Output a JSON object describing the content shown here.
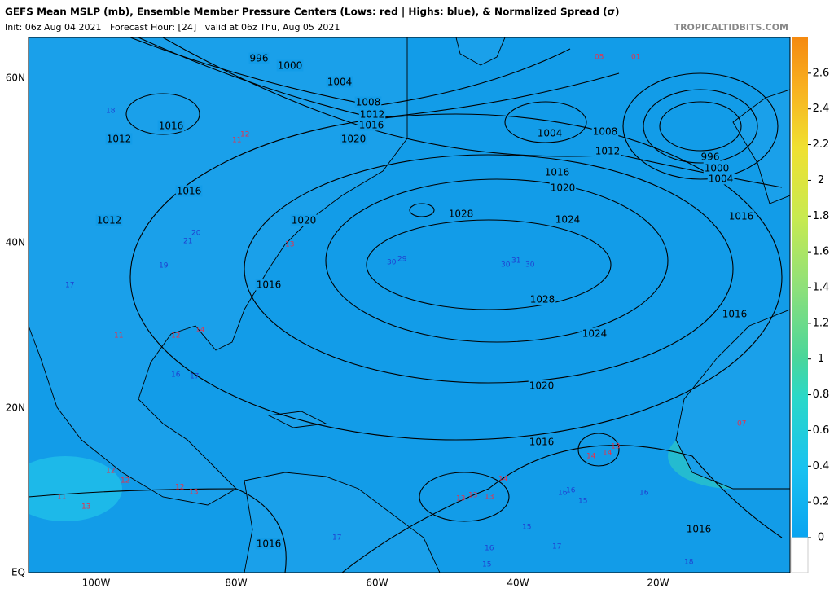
{
  "header": {
    "title": "GEFS Mean MSLP (mb), Ensemble Member Pressure Centers (Lows: red | Highs: blue), & Normalized Spread (σ)",
    "subtitle": "Init: 06z Aug 04 2021   Forecast Hour: [24]   valid at 06z Thu, Aug 05 2021",
    "source": "TROPICALTIDBITS.COM"
  },
  "map": {
    "lat_labels": [
      "60N",
      "40N",
      "20N",
      "EQ"
    ],
    "lon_labels": [
      "100W",
      "80W",
      "60W",
      "40W",
      "20W"
    ],
    "colorbar_lim": [
      0,
      2.8
    ],
    "colorbar_ticks": [
      0,
      0.2,
      0.4,
      0.6,
      0.8,
      1,
      1.2,
      1.4,
      1.6,
      1.8,
      2,
      2.2,
      2.4,
      2.6
    ],
    "isobar_labels": [
      "996",
      "1000",
      "1004",
      "1008",
      "1012",
      "1016",
      "1020",
      "1016",
      "1012",
      "1016",
      "1012",
      "1020",
      "1016",
      "1028",
      "1024",
      "1020",
      "1016",
      "1012",
      "1008",
      "1004",
      "996",
      "1000",
      "1004",
      "1016",
      "1028",
      "1024",
      "1016",
      "1020",
      "1016",
      "1016",
      "1016"
    ],
    "member_lows": [
      "13",
      "13",
      "14",
      "13",
      "12",
      "12",
      "11",
      "13",
      "12",
      "13",
      "14",
      "13",
      "14",
      "11",
      "12",
      "14",
      "11",
      "12",
      "13",
      "05",
      "01",
      "07"
    ],
    "member_highs": [
      "30",
      "29",
      "30",
      "31",
      "30",
      "17",
      "16",
      "17",
      "18",
      "16",
      "15",
      "16",
      "15",
      "16",
      "17",
      "18",
      "15",
      "16",
      "20",
      "21",
      "19",
      "17"
    ]
  }
}
